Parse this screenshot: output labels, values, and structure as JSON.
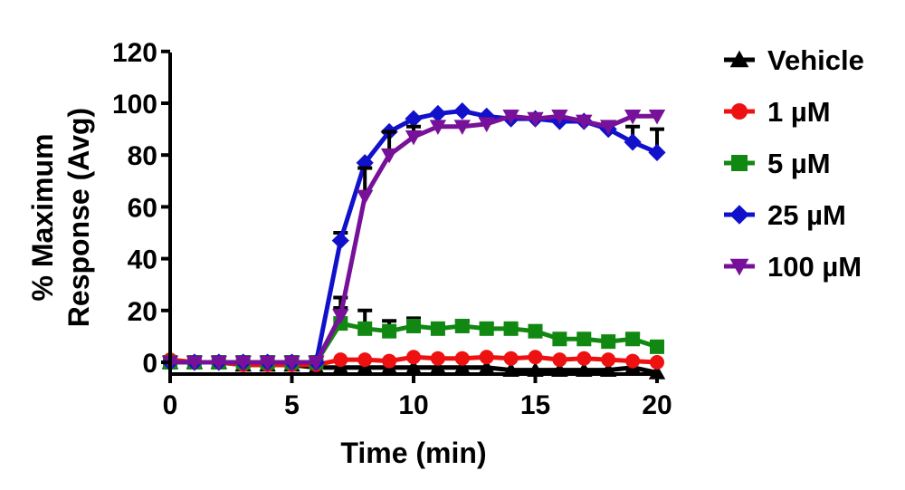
{
  "chart_data": {
    "type": "line",
    "title": "",
    "xlabel": "Time (min)",
    "ylabel_lines": [
      "% Maximum",
      "Response (Avg)"
    ],
    "xlim": [
      0,
      20
    ],
    "ylim": [
      -4,
      120
    ],
    "xticks": [
      0,
      5,
      10,
      15,
      20
    ],
    "yticks": [
      0,
      20,
      40,
      60,
      80,
      100,
      120
    ],
    "grid": false,
    "legend_position": "right",
    "series": [
      {
        "name": "Vehicle",
        "color": "#000000",
        "marker": "triangle-up",
        "x": [
          0,
          1,
          2,
          3,
          4,
          5,
          6,
          7,
          8,
          9,
          10,
          11,
          12,
          13,
          14,
          15,
          16,
          17,
          18,
          19,
          20
        ],
        "y": [
          0,
          0,
          0,
          -1,
          -1,
          -1,
          -2,
          -2,
          -2,
          -2,
          -2,
          -2,
          -2,
          -2,
          -3,
          -3,
          -3,
          -3,
          -3,
          -2,
          -4
        ],
        "err": [
          0,
          0,
          0,
          0,
          0,
          0,
          0,
          0,
          0,
          0,
          0,
          0,
          0,
          0,
          0,
          0,
          0,
          0,
          0,
          0,
          0
        ]
      },
      {
        "name": "1 µM",
        "color": "#ee1111",
        "marker": "circle",
        "x": [
          0,
          1,
          2,
          3,
          4,
          5,
          6,
          7,
          8,
          9,
          10,
          11,
          12,
          13,
          14,
          15,
          16,
          17,
          18,
          19,
          20
        ],
        "y": [
          1,
          0,
          0,
          -1,
          -1,
          -1,
          -1,
          1,
          1,
          0.5,
          2,
          1.5,
          1.5,
          2,
          1.5,
          2,
          1,
          1.5,
          1,
          0.5,
          0
        ],
        "err": [
          0,
          0,
          0,
          0,
          0,
          0,
          0,
          0,
          0,
          0,
          0,
          0,
          0,
          0,
          0,
          0,
          0,
          0,
          0,
          0,
          0
        ]
      },
      {
        "name": "5 µM",
        "color": "#118811",
        "marker": "square",
        "x": [
          0,
          1,
          2,
          3,
          4,
          5,
          6,
          7,
          8,
          9,
          10,
          11,
          12,
          13,
          14,
          15,
          16,
          17,
          18,
          19,
          20
        ],
        "y": [
          0,
          0,
          0,
          0,
          0,
          0,
          0,
          15,
          13,
          12,
          14,
          13,
          14,
          13,
          13,
          12,
          9,
          9,
          8,
          9,
          6
        ],
        "err": [
          0,
          0,
          0,
          0,
          0,
          0,
          0,
          10,
          7,
          4,
          3,
          1,
          2,
          2,
          1,
          1,
          0,
          0,
          0,
          2,
          0
        ]
      },
      {
        "name": "25 µM",
        "color": "#1111cc",
        "marker": "diamond",
        "x": [
          0,
          1,
          2,
          3,
          4,
          5,
          6,
          7,
          8,
          9,
          10,
          11,
          12,
          13,
          14,
          15,
          16,
          17,
          18,
          19,
          20
        ],
        "y": [
          0,
          0,
          0,
          0,
          0,
          0,
          0,
          47,
          77,
          89,
          94,
          96,
          97,
          95,
          94,
          94,
          93,
          93,
          90,
          85,
          81
        ],
        "err": [
          0,
          0,
          0,
          0,
          0,
          0,
          0,
          3,
          0,
          0,
          0,
          0,
          0,
          0,
          0,
          0,
          0,
          0,
          2,
          6,
          9
        ]
      },
      {
        "name": "100 µM",
        "color": "#771199",
        "marker": "triangle-down",
        "x": [
          0,
          1,
          2,
          3,
          4,
          5,
          6,
          7,
          8,
          9,
          10,
          11,
          12,
          13,
          14,
          15,
          16,
          17,
          18,
          19,
          20
        ],
        "y": [
          0,
          0,
          0,
          0,
          0,
          0,
          0,
          18,
          64,
          80,
          87,
          91,
          91,
          92,
          95,
          94,
          95,
          93,
          91,
          95,
          95
        ],
        "err": [
          0,
          0,
          0,
          0,
          0,
          0,
          0,
          3,
          11,
          9,
          4,
          0,
          0,
          0,
          0,
          0,
          0,
          0,
          0,
          0,
          0
        ]
      }
    ]
  }
}
